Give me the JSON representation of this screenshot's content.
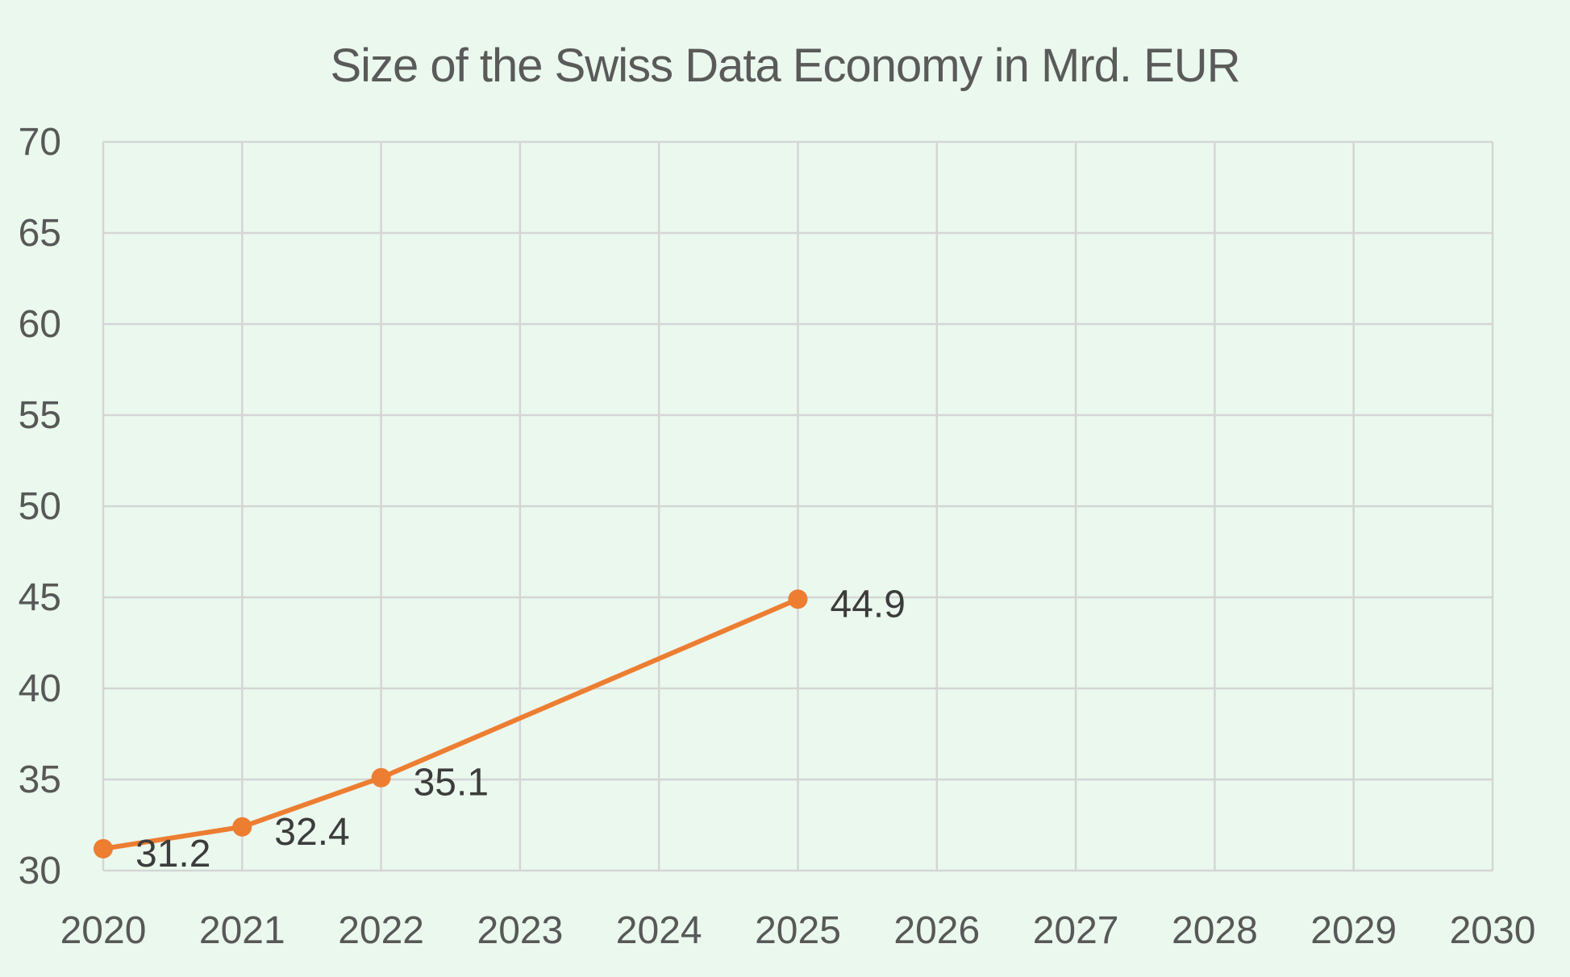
{
  "chart_data": {
    "type": "line",
    "title": "Size of the Swiss Data Economy in Mrd. EUR",
    "xlabel": "",
    "ylabel": "",
    "x_ticks": [
      "2020",
      "2021",
      "2022",
      "2023",
      "2024",
      "2025",
      "2026",
      "2027",
      "2028",
      "2029",
      "2030"
    ],
    "y_ticks": [
      "30",
      "35",
      "40",
      "45",
      "50",
      "55",
      "60",
      "65",
      "70"
    ],
    "xlim": [
      2020,
      2030
    ],
    "ylim": [
      30,
      70
    ],
    "grid": true,
    "legend": "none",
    "series": [
      {
        "color": "#ed7d31",
        "points": [
          {
            "x": 2020,
            "y": 31.2,
            "label": "31.2"
          },
          {
            "x": 2021,
            "y": 32.4,
            "label": "32.4"
          },
          {
            "x": 2022,
            "y": 35.1,
            "label": "35.1"
          },
          {
            "x": 2025,
            "y": 44.9,
            "label": "44.9"
          }
        ]
      }
    ]
  }
}
